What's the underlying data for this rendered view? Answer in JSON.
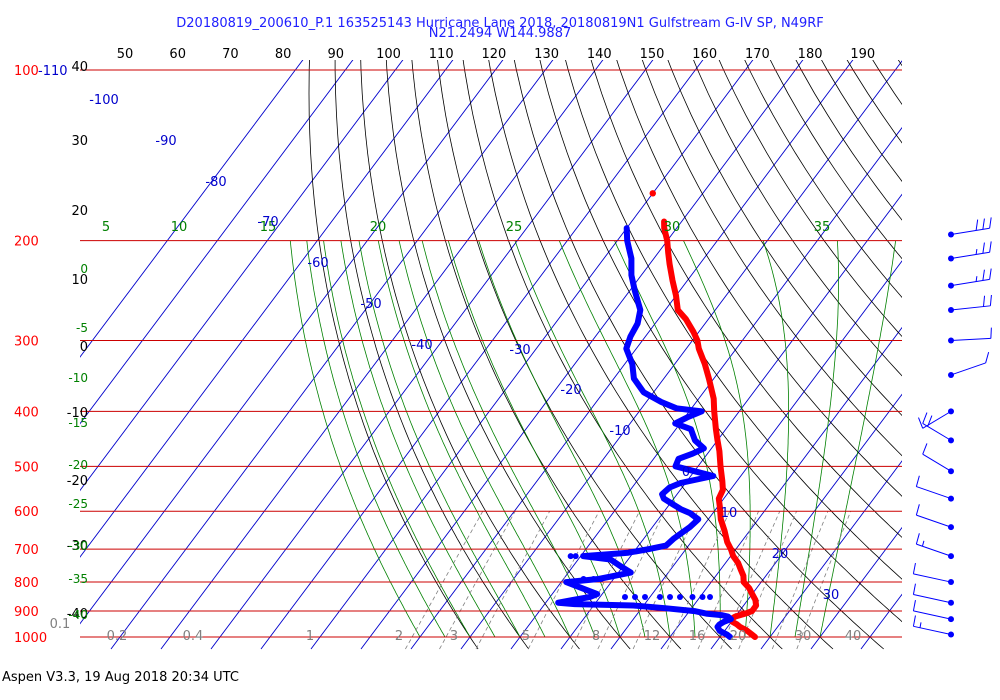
{
  "header": {
    "title_line1": "D20180819_200610_P.1 163525143 Hurricane Lane 2018, 20180819N1 Gulfstream G-IV SP, N49RF",
    "title_line2": "N21.2494 W144.9887"
  },
  "footer": {
    "text": "Aspen V3.3, 19 Aug 2018  20:34 UTC"
  },
  "colors": {
    "temperature": "#ff0000",
    "dewpoint": "#0000ff",
    "isobar": "#cc0000",
    "isotherm": "#0000cc",
    "dry_adiabat": "#000000",
    "moist_adiabat": "#008000",
    "mixing_ratio": "#808080",
    "wind_barb": "#0000ff"
  },
  "chart_data": {
    "type": "skew-t log-p sounding",
    "pressure_labels": [
      "100",
      "200",
      "300",
      "400",
      "500",
      "600",
      "700",
      "800",
      "900",
      "1000"
    ],
    "pressure_levels": [
      100,
      200,
      300,
      400,
      500,
      600,
      700,
      800,
      900,
      1000
    ],
    "pressure_top_extra_label": "-110",
    "top_axis_labels": [
      "50",
      "60",
      "70",
      "80",
      "90",
      "100",
      "110",
      "120",
      "130",
      "140",
      "150",
      "160",
      "170",
      "180",
      "190"
    ],
    "left_height_labels": [
      "40",
      "30",
      "20",
      "10",
      "0",
      "-10",
      "-20",
      "-30",
      "-40"
    ],
    "left_moist_labels": [
      "0",
      "-5",
      "-10",
      "-15",
      "-20",
      "-25",
      "-30",
      "-35",
      "-40"
    ],
    "upper_moist_labels": [
      "5",
      "10",
      "15",
      "20",
      "25",
      "30",
      "35"
    ],
    "isotherm_labels": [
      "-100",
      "-90",
      "-80",
      "-70",
      "-60",
      "-50",
      "-40",
      "-30",
      "-20",
      "-10",
      "0",
      "10",
      "20",
      "30"
    ],
    "mixing_ratio_labels": [
      "0.1",
      "0.2",
      "0.4",
      "1",
      "2",
      "3",
      "5",
      "8",
      "12",
      "16",
      "20",
      "30",
      "40"
    ],
    "temperature_profile": [
      {
        "p": 1000,
        "t": 27.0
      },
      {
        "p": 990,
        "t": 26.0
      },
      {
        "p": 975,
        "t": 24.5
      },
      {
        "p": 960,
        "t": 22.5
      },
      {
        "p": 950,
        "t": 21.5
      },
      {
        "p": 940,
        "t": 20.2
      },
      {
        "p": 930,
        "t": 19.5
      },
      {
        "p": 920,
        "t": 20.0
      },
      {
        "p": 910,
        "t": 21.5
      },
      {
        "p": 900,
        "t": 22.5
      },
      {
        "p": 880,
        "t": 22.5
      },
      {
        "p": 860,
        "t": 21.5
      },
      {
        "p": 840,
        "t": 20.0
      },
      {
        "p": 820,
        "t": 18.5
      },
      {
        "p": 800,
        "t": 16.5
      },
      {
        "p": 780,
        "t": 15.5
      },
      {
        "p": 760,
        "t": 14.0
      },
      {
        "p": 740,
        "t": 12.5
      },
      {
        "p": 720,
        "t": 10.5
      },
      {
        "p": 700,
        "t": 9.0
      },
      {
        "p": 680,
        "t": 7.2
      },
      {
        "p": 650,
        "t": 5.0
      },
      {
        "p": 620,
        "t": 2.5
      },
      {
        "p": 590,
        "t": 0.5
      },
      {
        "p": 570,
        "t": -1.0
      },
      {
        "p": 550,
        "t": -1.5
      },
      {
        "p": 530,
        "t": -3.0
      },
      {
        "p": 500,
        "t": -5.5
      },
      {
        "p": 470,
        "t": -8.0
      },
      {
        "p": 450,
        "t": -10.0
      },
      {
        "p": 430,
        "t": -12.0
      },
      {
        "p": 400,
        "t": -15.0
      },
      {
        "p": 380,
        "t": -17.0
      },
      {
        "p": 350,
        "t": -21.0
      },
      {
        "p": 330,
        "t": -24.0
      },
      {
        "p": 310,
        "t": -27.5
      },
      {
        "p": 300,
        "t": -29.0
      },
      {
        "p": 290,
        "t": -31.0
      },
      {
        "p": 275,
        "t": -34.5
      },
      {
        "p": 265,
        "t": -37.5
      },
      {
        "p": 250,
        "t": -40.0
      },
      {
        "p": 235,
        "t": -43.0
      },
      {
        "p": 220,
        "t": -46.0
      },
      {
        "p": 210,
        "t": -48.0
      },
      {
        "p": 200,
        "t": -50.0
      },
      {
        "p": 190,
        "t": -52.5
      },
      {
        "p": 185,
        "t": -53.5
      }
    ],
    "temperature_isolated_point": {
      "p": 165,
      "t": -60.0
    },
    "dewpoint_profile": [
      {
        "p": 1000,
        "td": 22.0
      },
      {
        "p": 990,
        "td": 21.0
      },
      {
        "p": 975,
        "td": 19.0
      },
      {
        "p": 960,
        "td": 18.0
      },
      {
        "p": 950,
        "td": 18.0
      },
      {
        "p": 940,
        "td": 18.5
      },
      {
        "p": 930,
        "td": 19.5
      },
      {
        "p": 920,
        "td": 18.5
      },
      {
        "p": 915,
        "td": 17.0
      },
      {
        "p": 910,
        "td": 14.0
      },
      {
        "p": 900,
        "td": 11.0
      },
      {
        "p": 890,
        "td": 5.0
      },
      {
        "p": 880,
        "td": -2.0
      },
      {
        "p": 875,
        "td": -14.0
      },
      {
        "p": 870,
        "td": -17.5
      },
      {
        "p": 860,
        "td": -15.0
      },
      {
        "p": 850,
        "td": -12.0
      },
      {
        "p": 840,
        "td": -11.0
      },
      {
        "p": 820,
        "td": -15.0
      },
      {
        "p": 800,
        "td": -19.0
      },
      {
        "p": 790,
        "td": -13.0
      },
      {
        "p": 770,
        "td": -7.5
      },
      {
        "p": 750,
        "td": -10.5
      },
      {
        "p": 730,
        "td": -13.5
      },
      {
        "p": 720,
        "td": -19.5
      },
      {
        "p": 710,
        "td": -11.0
      },
      {
        "p": 700,
        "td": -7.5
      },
      {
        "p": 690,
        "td": -4.5
      },
      {
        "p": 670,
        "td": -4.0
      },
      {
        "p": 660,
        "td": -3.5
      },
      {
        "p": 640,
        "td": -2.5
      },
      {
        "p": 620,
        "td": -2.0
      },
      {
        "p": 605,
        "td": -4.5
      },
      {
        "p": 595,
        "td": -7.0
      },
      {
        "p": 585,
        "td": -9.0
      },
      {
        "p": 570,
        "td": -12.0
      },
      {
        "p": 560,
        "td": -13.0
      },
      {
        "p": 545,
        "td": -12.5
      },
      {
        "p": 535,
        "td": -11.0
      },
      {
        "p": 520,
        "td": -5.5
      },
      {
        "p": 510,
        "td": -10.0
      },
      {
        "p": 500,
        "td": -14.5
      },
      {
        "p": 485,
        "td": -15.0
      },
      {
        "p": 475,
        "td": -13.0
      },
      {
        "p": 465,
        "td": -11.5
      },
      {
        "p": 450,
        "td": -14.5
      },
      {
        "p": 430,
        "td": -17.0
      },
      {
        "p": 420,
        "td": -21.0
      },
      {
        "p": 410,
        "td": -19.5
      },
      {
        "p": 400,
        "td": -17.5
      },
      {
        "p": 395,
        "td": -23.0
      },
      {
        "p": 385,
        "td": -27.0
      },
      {
        "p": 370,
        "td": -32.0
      },
      {
        "p": 350,
        "td": -36.0
      },
      {
        "p": 330,
        "td": -38.5
      },
      {
        "p": 310,
        "td": -42.0
      },
      {
        "p": 295,
        "td": -43.0
      },
      {
        "p": 280,
        "td": -43.5
      },
      {
        "p": 265,
        "td": -45.0
      },
      {
        "p": 245,
        "td": -49.0
      },
      {
        "p": 230,
        "td": -52.0
      },
      {
        "p": 215,
        "td": -54.5
      },
      {
        "p": 200,
        "td": -58.0
      },
      {
        "p": 190,
        "td": -60.0
      }
    ],
    "dewpoint_scattered_points": [
      {
        "p": 850,
        "td": -5.0
      },
      {
        "p": 850,
        "td": -3.0
      },
      {
        "p": 850,
        "td": -1.0
      },
      {
        "p": 850,
        "td": 2.0
      },
      {
        "p": 850,
        "td": 4.0
      },
      {
        "p": 850,
        "td": 6.0
      },
      {
        "p": 850,
        "td": 8.5
      },
      {
        "p": 850,
        "td": 10.5
      },
      {
        "p": 850,
        "td": 12.0
      },
      {
        "p": 720,
        "td": -22.0
      },
      {
        "p": 720,
        "td": -21.0
      },
      {
        "p": 720,
        "td": -18.0
      },
      {
        "p": 720,
        "td": -17.0
      },
      {
        "p": 720,
        "td": -15.5
      },
      {
        "p": 720,
        "td": -14.5
      },
      {
        "p": 790,
        "td": -16.0
      },
      {
        "p": 790,
        "td": -14.0
      },
      {
        "p": 790,
        "td": -12.5
      }
    ],
    "wind_barbs": [
      {
        "p": 195,
        "dir": 75,
        "spd": 30
      },
      {
        "p": 215,
        "dir": 75,
        "spd": 25
      },
      {
        "p": 240,
        "dir": 75,
        "spd": 25
      },
      {
        "p": 265,
        "dir": 80,
        "spd": 20
      },
      {
        "p": 300,
        "dir": 85,
        "spd": 10
      },
      {
        "p": 345,
        "dir": 60,
        "spd": 10
      },
      {
        "p": 400,
        "dir": 225,
        "spd": 10
      },
      {
        "p": 450,
        "dir": 315,
        "spd": 20
      },
      {
        "p": 510,
        "dir": 315,
        "spd": 10
      },
      {
        "p": 570,
        "dir": 300,
        "spd": 10
      },
      {
        "p": 640,
        "dir": 300,
        "spd": 10
      },
      {
        "p": 720,
        "dir": 300,
        "spd": 15
      },
      {
        "p": 800,
        "dir": 290,
        "spd": 10
      },
      {
        "p": 870,
        "dir": 290,
        "spd": 10
      },
      {
        "p": 930,
        "dir": 290,
        "spd": 10
      },
      {
        "p": 990,
        "dir": 290,
        "spd": 15
      }
    ]
  }
}
